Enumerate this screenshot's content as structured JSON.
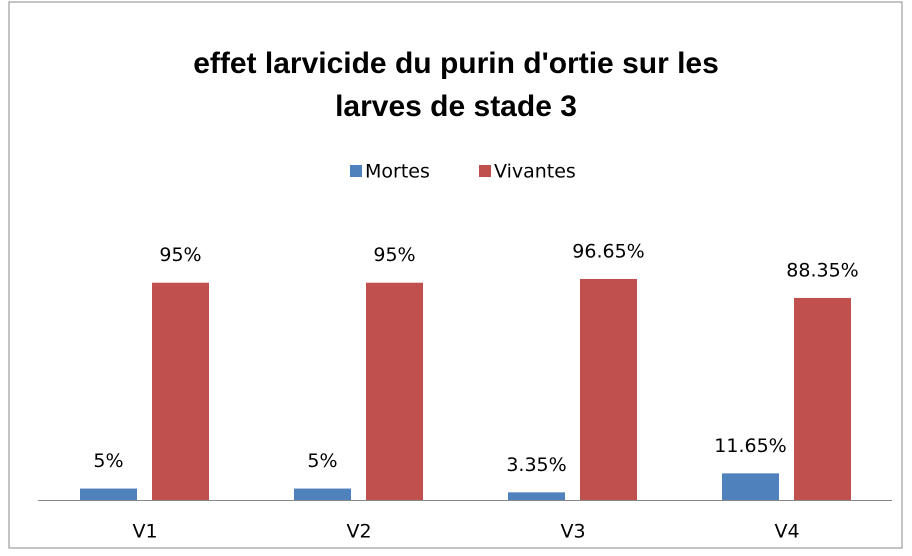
{
  "chart_data": {
    "type": "bar",
    "title": "effet larvicide du purin d'ortie sur les larves de stade 3",
    "categories": [
      "V1",
      "V2",
      "V3",
      "V4"
    ],
    "series": [
      {
        "name": "Mortes",
        "color": "#4f81bd",
        "values": [
          5,
          5,
          3.35,
          11.65
        ],
        "value_labels": [
          "5%",
          "5%",
          "3.35%",
          "11.65%"
        ]
      },
      {
        "name": "Vivantes",
        "color": "#c0504d",
        "values": [
          95,
          95,
          96.65,
          88.35
        ],
        "value_labels": [
          "95%",
          "95%",
          "96.65%",
          "88.35%"
        ]
      }
    ],
    "legend": "top"
  }
}
